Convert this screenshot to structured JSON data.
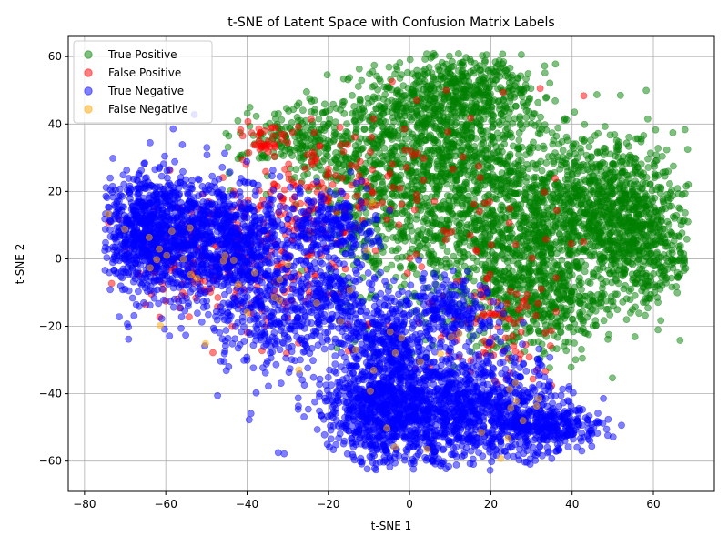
{
  "chart_data": {
    "type": "scatter",
    "title": "t-SNE of Latent Space with Confusion Matrix Labels",
    "xlabel": "t-SNE 1",
    "ylabel": "t-SNE 2",
    "xlim": [
      -84,
      75
    ],
    "ylim": [
      -69,
      66
    ],
    "xticks": [
      -80,
      -60,
      -40,
      -20,
      0,
      20,
      40,
      60
    ],
    "yticks": [
      -60,
      -40,
      -20,
      0,
      20,
      40,
      60
    ],
    "xtick_labels": [
      "−80",
      "−60",
      "−40",
      "−20",
      "0",
      "20",
      "40",
      "60"
    ],
    "ytick_labels": [
      "−60",
      "−40",
      "−20",
      "0",
      "20",
      "40",
      "60"
    ],
    "grid": true,
    "legend_position": "top-left",
    "series": [
      {
        "name": "True Positive",
        "color": "#008000",
        "clusters": [
          {
            "cx": 10,
            "cy": 30,
            "sx": 12,
            "sy": 14,
            "n": 900
          },
          {
            "cx": 25,
            "cy": 5,
            "sx": 12,
            "sy": 14,
            "n": 900
          },
          {
            "cx": 45,
            "cy": 15,
            "sx": 10,
            "sy": 12,
            "n": 700
          },
          {
            "cx": 55,
            "cy": 10,
            "sx": 7,
            "sy": 10,
            "n": 400
          },
          {
            "cx": 60,
            "cy": 0,
            "sx": 5,
            "sy": 7,
            "n": 150
          },
          {
            "cx": 15,
            "cy": 50,
            "sx": 8,
            "sy": 6,
            "n": 300
          },
          {
            "cx": -25,
            "cy": 35,
            "sx": 8,
            "sy": 6,
            "n": 250
          },
          {
            "cx": -8,
            "cy": 15,
            "sx": 7,
            "sy": 15,
            "n": 300
          },
          {
            "cx": 35,
            "cy": -15,
            "sx": 8,
            "sy": 6,
            "n": 250
          },
          {
            "cx": 0,
            "cy": 45,
            "sx": 8,
            "sy": 6,
            "n": 200
          }
        ]
      },
      {
        "name": "False Positive",
        "color": "#ff0000",
        "clusters": [
          {
            "cx": -38,
            "cy": 0,
            "sx": 12,
            "sy": 10,
            "n": 180
          },
          {
            "cx": -30,
            "cy": 15,
            "sx": 8,
            "sy": 8,
            "n": 80
          },
          {
            "cx": -35,
            "cy": 35,
            "sx": 3,
            "sy": 3,
            "n": 40
          },
          {
            "cx": -15,
            "cy": 25,
            "sx": 8,
            "sy": 10,
            "n": 60
          },
          {
            "cx": 20,
            "cy": -20,
            "sx": 8,
            "sy": 10,
            "n": 100
          },
          {
            "cx": 5,
            "cy": 20,
            "sx": 20,
            "sy": 20,
            "n": 70
          },
          {
            "cx": -55,
            "cy": 0,
            "sx": 8,
            "sy": 10,
            "n": 50
          }
        ]
      },
      {
        "name": "True Negative",
        "color": "#0000ff",
        "clusters": [
          {
            "cx": -65,
            "cy": 8,
            "sx": 6,
            "sy": 9,
            "n": 800
          },
          {
            "cx": -50,
            "cy": 5,
            "sx": 7,
            "sy": 10,
            "n": 600
          },
          {
            "cx": -40,
            "cy": 5,
            "sx": 5,
            "sy": 7,
            "n": 300
          },
          {
            "cx": -32,
            "cy": -15,
            "sx": 8,
            "sy": 10,
            "n": 400
          },
          {
            "cx": -20,
            "cy": 10,
            "sx": 6,
            "sy": 5,
            "n": 250
          },
          {
            "cx": -18,
            "cy": -10,
            "sx": 4,
            "sy": 6,
            "n": 150
          },
          {
            "cx": 0,
            "cy": -45,
            "sx": 10,
            "sy": 8,
            "n": 900
          },
          {
            "cx": 20,
            "cy": -45,
            "sx": 10,
            "sy": 8,
            "n": 700
          },
          {
            "cx": 35,
            "cy": -50,
            "sx": 6,
            "sy": 3,
            "n": 250
          },
          {
            "cx": -5,
            "cy": -25,
            "sx": 6,
            "sy": 8,
            "n": 400
          },
          {
            "cx": 10,
            "cy": -15,
            "sx": 5,
            "sy": 5,
            "n": 200
          },
          {
            "cx": -10,
            "cy": -45,
            "sx": 5,
            "sy": 8,
            "n": 250
          }
        ]
      },
      {
        "name": "False Negative",
        "color": "#ffa500",
        "clusters": [
          {
            "cx": -35,
            "cy": -10,
            "sx": 12,
            "sy": 12,
            "n": 20
          },
          {
            "cx": 0,
            "cy": -35,
            "sx": 12,
            "sy": 12,
            "n": 15
          },
          {
            "cx": -60,
            "cy": 2,
            "sx": 8,
            "sy": 8,
            "n": 10
          },
          {
            "cx": 25,
            "cy": -45,
            "sx": 8,
            "sy": 5,
            "n": 8
          }
        ]
      }
    ]
  }
}
